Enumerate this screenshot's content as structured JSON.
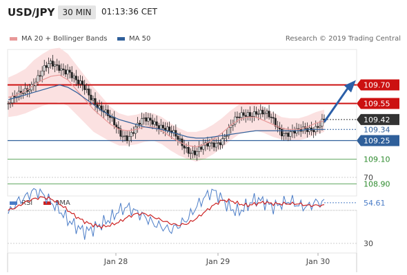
{
  "header": {
    "symbol": "USD/JPY",
    "timeframe": "30 MIN",
    "time": "01:13:36 CET"
  },
  "legend": {
    "ma20_label": "MA 20 + Bollinger Bands",
    "ma50_label": "MA 50",
    "credit": "Research © 2019 Trading Central",
    "colors": {
      "ma20": "#e89898",
      "ma50": "#2f5f9a",
      "bands": "#fadcdc"
    }
  },
  "rsi_legend": {
    "rsi_label": "RSI",
    "ma_label": "9MA",
    "colors": {
      "rsi": "#4a7cc7",
      "ma": "#cc2222"
    }
  },
  "chart_data": [
    {
      "type": "candlestick",
      "title": "",
      "ylim": [
        108.8,
        109.98
      ],
      "x_ticks": [
        "Jan 28",
        "Jan 29",
        "Jan 30"
      ],
      "levels": [
        {
          "label": "109.70",
          "value": 109.7,
          "kind": "resistance",
          "color": "#cc1111"
        },
        {
          "label": "109.55",
          "value": 109.55,
          "kind": "resistance",
          "color": "#cc1111"
        },
        {
          "label": "109.42",
          "value": 109.42,
          "kind": "last-price",
          "color": "#333333"
        },
        {
          "label": "109.34",
          "value": 109.34,
          "kind": "dotted",
          "color": "#2f5f9a"
        },
        {
          "label": "109.25",
          "value": 109.25,
          "kind": "pivot",
          "color": "#2f5f9a"
        },
        {
          "label": "109.10",
          "value": 109.1,
          "kind": "support",
          "color": "#2e8b2e"
        },
        {
          "label": "108.90",
          "value": 108.9,
          "kind": "support",
          "color": "#2e8b2e"
        }
      ],
      "forecast_arrow": {
        "from": 109.4,
        "to": 109.7,
        "color": "#2b5fa8"
      },
      "price_path": [
        109.55,
        109.58,
        109.66,
        109.74,
        109.8,
        109.85,
        109.86,
        109.83,
        109.7,
        109.66,
        109.6,
        109.5,
        109.4,
        109.32,
        109.3,
        109.35,
        109.4,
        109.42,
        109.38,
        109.3,
        109.24,
        109.2,
        109.16,
        109.18,
        109.22,
        109.28,
        109.35,
        109.42,
        109.48,
        109.5,
        109.45,
        109.4,
        109.34,
        109.32,
        109.3,
        109.34,
        109.38,
        109.42
      ],
      "ma20_path": [
        109.6,
        109.62,
        109.65,
        109.7,
        109.74,
        109.77,
        109.78,
        109.74,
        109.66,
        109.58,
        109.5,
        109.44,
        109.38,
        109.34,
        109.33,
        109.34,
        109.36,
        109.36,
        109.33,
        109.28,
        109.24,
        109.21,
        109.2,
        109.22,
        109.26,
        109.31,
        109.37,
        109.42,
        109.44,
        109.44,
        109.41,
        109.38,
        109.35,
        109.34,
        109.34,
        109.36,
        109.39,
        109.41
      ],
      "ma50_path": [
        109.58,
        109.6,
        109.62,
        109.64,
        109.66,
        109.68,
        109.7,
        109.68,
        109.64,
        109.59,
        109.54,
        109.49,
        109.45,
        109.42,
        109.4,
        109.38,
        109.36,
        109.35,
        109.34,
        109.32,
        109.3,
        109.28,
        109.27,
        109.27,
        109.28,
        109.29,
        109.3,
        109.31,
        109.32,
        109.33,
        109.33,
        109.33,
        109.33,
        109.33,
        109.33,
        109.34,
        109.34,
        109.34
      ],
      "band_width": [
        0.16,
        0.17,
        0.18,
        0.2,
        0.21,
        0.22,
        0.22,
        0.21,
        0.2,
        0.19,
        0.18,
        0.16,
        0.14,
        0.13,
        0.12,
        0.12,
        0.12,
        0.11,
        0.11,
        0.11,
        0.11,
        0.11,
        0.12,
        0.12,
        0.12,
        0.12,
        0.12,
        0.12,
        0.12,
        0.11,
        0.1,
        0.1,
        0.09,
        0.09,
        0.09,
        0.09,
        0.09,
        0.09
      ]
    },
    {
      "type": "line",
      "title": "",
      "ylim": [
        20,
        80
      ],
      "y_ticks": [
        "70",
        "30"
      ],
      "last_value_label": "54.61",
      "last_value": 54.61,
      "rsi_path": [
        48,
        55,
        58,
        62,
        60,
        55,
        50,
        44,
        40,
        37,
        39,
        42,
        45,
        50,
        52,
        49,
        46,
        42,
        40,
        38,
        41,
        45,
        52,
        58,
        62,
        57,
        51,
        49,
        53,
        57,
        55,
        52,
        54,
        56,
        53,
        52,
        55,
        54.61
      ],
      "ma_path": [
        50,
        52,
        55,
        57,
        58,
        57,
        54,
        50,
        46,
        43,
        41,
        40,
        41,
        43,
        46,
        48,
        48,
        46,
        44,
        42,
        41,
        42,
        45,
        49,
        53,
        56,
        56,
        54,
        53,
        54,
        55,
        54,
        54,
        54,
        54,
        53,
        53,
        53
      ]
    }
  ]
}
